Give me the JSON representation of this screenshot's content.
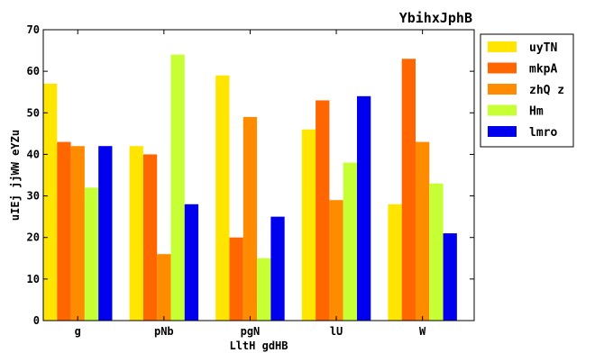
{
  "chart_data": {
    "type": "bar",
    "title": "YbihxJphB",
    "xlabel": "LltH gdHB",
    "ylabel": "uIEj jjWW eYZu",
    "ylim": [
      0,
      70
    ],
    "yticks": [
      0,
      10,
      20,
      30,
      40,
      50,
      60,
      70
    ],
    "categories": [
      "g",
      "pNb",
      "pgN",
      "lU",
      "W"
    ],
    "grid": false,
    "legend_position": "outside-top-right",
    "series": [
      {
        "name": "uyTN",
        "color": "#ffe500",
        "values": [
          57,
          42,
          59,
          46,
          28
        ]
      },
      {
        "name": "mkpA",
        "color": "#ff6600",
        "values": [
          43,
          40,
          20,
          53,
          63
        ]
      },
      {
        "name": "zhQ z",
        "color": "#ff8c00",
        "values": [
          42,
          16,
          49,
          29,
          43
        ]
      },
      {
        "name": "Hm",
        "color": "#c6ff33",
        "values": [
          32,
          64,
          15,
          38,
          33
        ]
      },
      {
        "name": "lmro",
        "color": "#0000ee",
        "values": [
          42,
          28,
          25,
          54,
          21
        ]
      }
    ]
  }
}
